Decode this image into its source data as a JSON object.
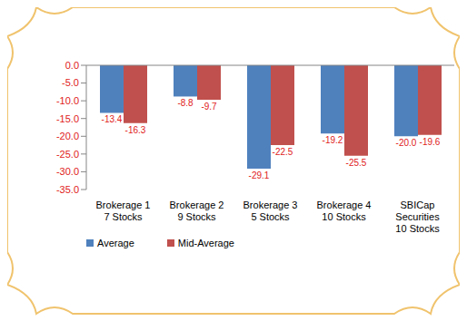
{
  "chart_data": {
    "type": "bar",
    "categories": [
      "Brokerage 1 7 Stocks",
      "Brokerage 2 9 Stocks",
      "Brokerage 3 5 Stocks",
      "Brokerage 4 10 Stocks",
      "SBICap Securities 10 Stocks"
    ],
    "series": [
      {
        "name": "Average",
        "color": "#4f81bd",
        "values": [
          -13.4,
          -8.8,
          -29.1,
          -19.2,
          -20.0
        ],
        "value_labels": [
          "-13.4",
          "-8.8",
          "-29.1",
          "-19.2",
          "-20.0"
        ]
      },
      {
        "name": "Mid-Average",
        "color": "#c0504d",
        "values": [
          -16.3,
          -9.7,
          -22.5,
          -25.5,
          -19.6
        ]
      }
    ],
    "ylim": [
      -35,
      0
    ],
    "yticks": [
      {
        "value": -35,
        "label": "-35.0"
      },
      {
        "value": -30,
        "label": "-30.0"
      },
      {
        "value": -25,
        "label": "-25.0"
      },
      {
        "value": -20,
        "label": "-20.0"
      },
      {
        "value": -15,
        "label": "-15.0"
      },
      {
        "value": -10,
        "label": "-10.0"
      },
      {
        "value": -5,
        "label": "-5.0"
      },
      {
        "value": 0,
        "label": "0.0"
      }
    ],
    "grid": false,
    "legend": "bottom",
    "data_labels": true
  }
}
